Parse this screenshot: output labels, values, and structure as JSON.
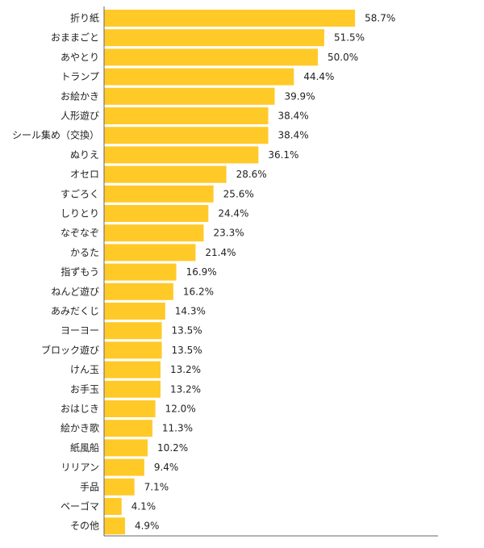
{
  "chart_data": {
    "type": "bar",
    "orientation": "horizontal",
    "categories": [
      "折り紙",
      "おままごと",
      "あやとり",
      "トランプ",
      "お絵かき",
      "人形遊び",
      "シール集め（交換）",
      "ぬりえ",
      "オセロ",
      "すごろく",
      "しりとり",
      "なぞなぞ",
      "かるた",
      "指ずもう",
      "ねんど遊び",
      "あみだくじ",
      "ヨーヨー",
      "ブロック遊び",
      "けん玉",
      "お手玉",
      "おはじき",
      "絵かき歌",
      "紙風船",
      "リリアン",
      "手品",
      "ベーゴマ",
      "その他"
    ],
    "values": [
      58.7,
      51.5,
      50.0,
      44.4,
      39.9,
      38.4,
      38.4,
      36.1,
      28.6,
      25.6,
      24.4,
      23.3,
      21.4,
      16.9,
      16.2,
      14.3,
      13.5,
      13.5,
      13.2,
      13.2,
      12.0,
      11.3,
      10.2,
      9.4,
      7.1,
      4.1,
      4.9
    ],
    "value_labels": [
      "58.7%",
      "51.5%",
      "50.0%",
      "44.4%",
      "39.9%",
      "38.4%",
      "38.4%",
      "36.1%",
      "28.6%",
      "25.6%",
      "24.4%",
      "23.3%",
      "21.4%",
      "16.9%",
      "16.2%",
      "14.3%",
      "13.5%",
      "13.5%",
      "13.2%",
      "13.2%",
      "12.0%",
      "11.3%",
      "10.2%",
      "9.4%",
      "7.1%",
      "4.1%",
      "4.9%"
    ],
    "title": "",
    "xlabel": "",
    "ylabel": "",
    "xlim": [
      0,
      100
    ],
    "grid": false,
    "legend": "none",
    "bar_color": "#ffc928",
    "axis_color": "#666666"
  }
}
